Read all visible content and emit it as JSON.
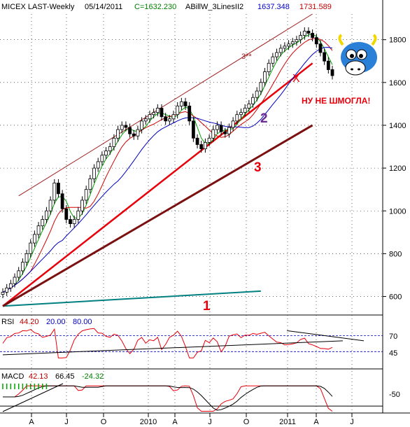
{
  "chart_data": {
    "type": "candlestick",
    "header": {
      "symbol": "MICEX LAST-Weekly",
      "date": "05/14/2011",
      "close": "C=1632.230",
      "indicator": "ABillW_3LinesII2",
      "val1": "1637.348",
      "val2": "1731.589"
    },
    "y_axis": {
      "ticks": [
        600,
        800,
        1000,
        1200,
        1400,
        1600,
        1800
      ],
      "ylim": [
        520,
        1920
      ]
    },
    "x_axis": {
      "labels": [
        "A",
        "J",
        "O",
        "2010",
        "A",
        "J",
        "O",
        "2011",
        "A",
        "J"
      ]
    },
    "price_weekly_close": [
      620,
      640,
      660,
      690,
      720,
      760,
      800,
      850,
      890,
      930,
      960,
      1000,
      1050,
      1130,
      1080,
      1010,
      960,
      940,
      960,
      1000,
      1050,
      1100,
      1150,
      1200,
      1230,
      1260,
      1280,
      1300,
      1340,
      1380,
      1400,
      1390,
      1360,
      1350,
      1380,
      1420,
      1430,
      1450,
      1460,
      1480,
      1440,
      1420,
      1430,
      1450,
      1490,
      1510,
      1490,
      1420,
      1340,
      1310,
      1290,
      1320,
      1340,
      1380,
      1400,
      1370,
      1360,
      1390,
      1420,
      1450,
      1460,
      1480,
      1500,
      1530,
      1560,
      1600,
      1650,
      1690,
      1720,
      1740,
      1760,
      1770,
      1780,
      1790,
      1800,
      1820,
      1840,
      1830,
      1810,
      1780,
      1740,
      1700,
      1660,
      1632
    ],
    "channel_lines": [
      {
        "name": "1",
        "color": "#008080",
        "from": [
          0,
          555
        ],
        "to": [
          65,
          625
        ]
      },
      {
        "name": "2",
        "color": "#e8000b",
        "from": [
          0,
          555
        ],
        "to": [
          78,
          1690
        ]
      },
      {
        "name": "3",
        "color": "#7b1010",
        "from": [
          0,
          555
        ],
        "to": [
          78,
          1400
        ]
      },
      {
        "name": "3**",
        "color": "#a02020",
        "from": [
          4,
          1070
        ],
        "to": [
          78,
          1920
        ]
      }
    ],
    "annotations": {
      "label_3star": "3**",
      "label_x": "X",
      "label_2": "2",
      "label_3": "3",
      "label_1": "1",
      "caption": "НУ НЕ ШМОГЛА!"
    },
    "rsi": {
      "label": "RSI",
      "value": "44.20",
      "lower": "20.00",
      "upper": "80.00",
      "ticks": [
        "70",
        "45"
      ]
    },
    "macd": {
      "label": "MACD",
      "v1": "42.13",
      "v2": "66.45",
      "v3": "-24.32",
      "ticks": [
        "-50"
      ]
    },
    "colors": {
      "up": "#000000",
      "down": "#000000",
      "ma_fast": "#00a000",
      "ma_mid": "#d00000",
      "ma_slow": "#0000c0",
      "header_green": "#008000",
      "header_blue": "#0000c0",
      "header_red": "#c00000"
    }
  }
}
